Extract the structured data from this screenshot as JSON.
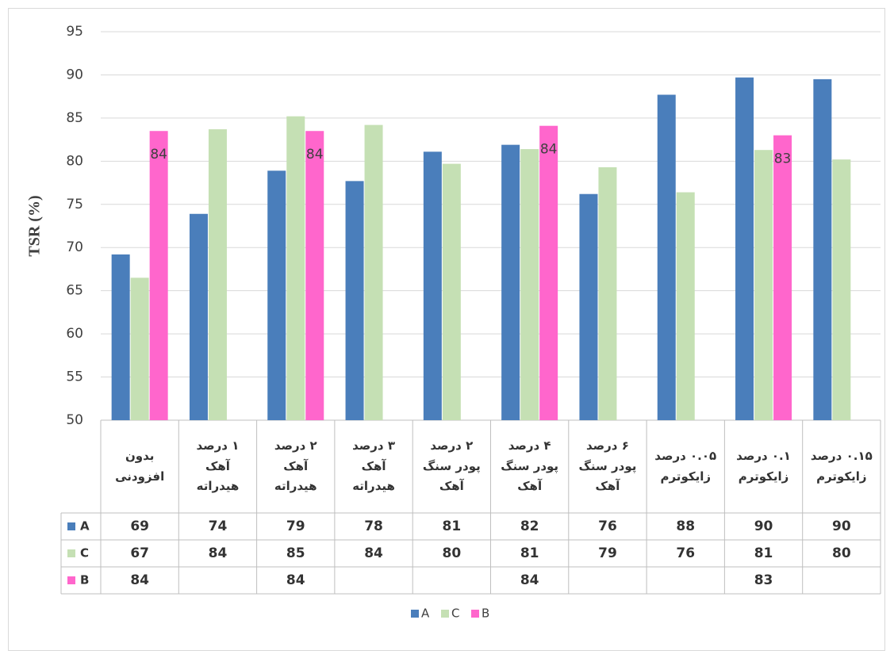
{
  "chart_data": {
    "type": "bar",
    "y_label": "TSR (%)",
    "categories": [
      "بدون\nافزودنی",
      "۱ درصد\nآهک\nهیدراته",
      "۲ درصد\nآهک\nهیدراته",
      "۳ درصد\nآهک\nهیدراته",
      "۲ درصد\nپودر سنگ\nآهک",
      "۴ درصد\nپودر سنگ\nآهک",
      "۶ درصد\nپودر سنگ\nآهک",
      "۰.۰۵ درصد\nزایکوترم",
      "۰.۱ درصد\nزایکوترم",
      "۰.۱۵ درصد\nزایکوترم"
    ],
    "series": [
      {
        "name": "A",
        "color": "#4a7ebb",
        "values": [
          69.2,
          73.9,
          78.9,
          77.7,
          81.1,
          81.9,
          76.2,
          87.7,
          89.7,
          89.5
        ],
        "value_labels": [
          "69",
          "74",
          "79",
          "78",
          "81",
          "82",
          "76",
          "88",
          "90",
          "90"
        ]
      },
      {
        "name": "C",
        "color": "#c5e0b4",
        "values": [
          66.5,
          83.7,
          85.2,
          84.2,
          79.7,
          81.4,
          79.3,
          76.4,
          81.3,
          80.2
        ],
        "value_labels": [
          "67",
          "84",
          "85",
          "84",
          "80",
          "81",
          "79",
          "76",
          "81",
          "80"
        ]
      },
      {
        "name": "B",
        "color": "#ff66cc",
        "values": [
          83.5,
          null,
          83.5,
          null,
          null,
          84.1,
          null,
          null,
          83.0,
          null
        ],
        "value_labels": [
          "84",
          null,
          "84",
          null,
          null,
          "84",
          null,
          null,
          "83",
          null
        ]
      }
    ],
    "ylim": [
      50,
      95
    ],
    "yticks": [
      50,
      55,
      60,
      65,
      70,
      75,
      80,
      85,
      90,
      95
    ],
    "grid": true,
    "legend": "bottom"
  }
}
